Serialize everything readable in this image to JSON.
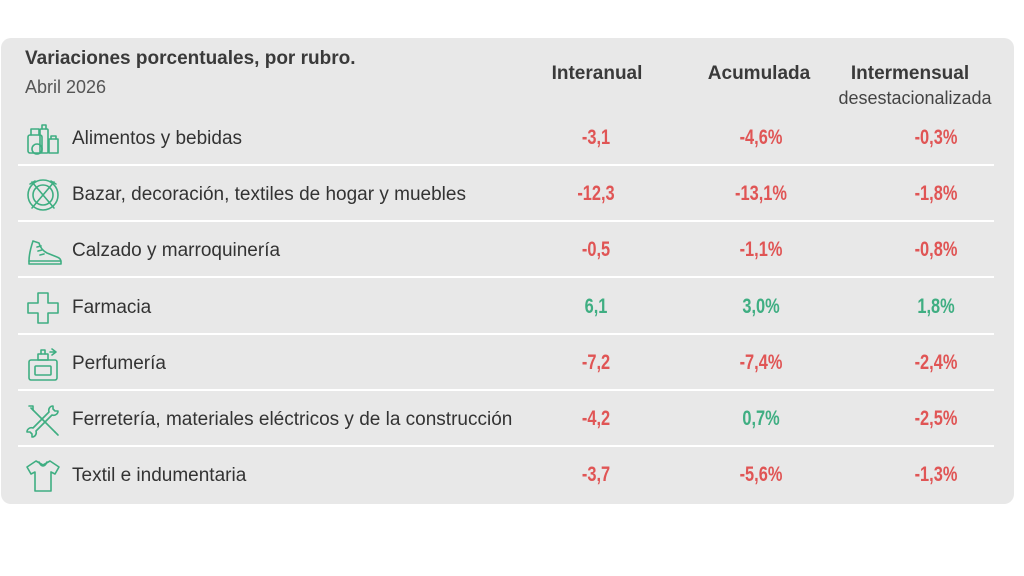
{
  "colors": {
    "negative": "#e05555",
    "positive": "#3fae82",
    "icon": "#3fae82"
  },
  "chart_data": {
    "type": "table",
    "title": "Variaciones porcentuales, por rubro.",
    "subtitle": "Abril 2026",
    "columns": [
      {
        "label": "Interanual",
        "sublabel": ""
      },
      {
        "label": "Acumulada",
        "sublabel": ""
      },
      {
        "label": "Intermensual",
        "sublabel": "desestacionalizada"
      }
    ],
    "rows": [
      {
        "label": "Alimentos y bebidas",
        "icon": "food-basket-icon",
        "values": [
          -3.1,
          -4.6,
          -0.3
        ],
        "display": [
          "-3,1",
          "-4,6%",
          "-0,3%"
        ]
      },
      {
        "label": "Bazar, decoración, textiles de hogar y muebles",
        "icon": "plate-cutlery-icon",
        "values": [
          -12.3,
          -13.1,
          -1.8
        ],
        "display": [
          "-12,3",
          "-13,1%",
          "-1,8%"
        ]
      },
      {
        "label": "Calzado y marroquinería",
        "icon": "sneaker-icon",
        "values": [
          -0.5,
          -1.1,
          -0.8
        ],
        "display": [
          "-0,5",
          "-1,1%",
          "-0,8%"
        ]
      },
      {
        "label": "Farmacia",
        "icon": "pharmacy-cross-icon",
        "values": [
          6.1,
          3.0,
          1.8
        ],
        "display": [
          "6,1",
          "3,0%",
          "1,8%"
        ]
      },
      {
        "label": "Perfumería",
        "icon": "perfume-bottle-icon",
        "values": [
          -7.2,
          -7.4,
          -2.4
        ],
        "display": [
          "-7,2",
          "-7,4%",
          "-2,4%"
        ]
      },
      {
        "label": "Ferretería, materiales eléctricos y de la construcción",
        "icon": "wrench-screwdriver-icon",
        "values": [
          -4.2,
          0.7,
          -2.5
        ],
        "display": [
          "-4,2",
          "0,7%",
          "-2,5%"
        ]
      },
      {
        "label": "Textil e indumentaria",
        "icon": "shirt-icon",
        "values": [
          -3.7,
          -5.6,
          -1.3
        ],
        "display": [
          "-3,7",
          "-5,6%",
          "-1,3%"
        ]
      }
    ]
  }
}
